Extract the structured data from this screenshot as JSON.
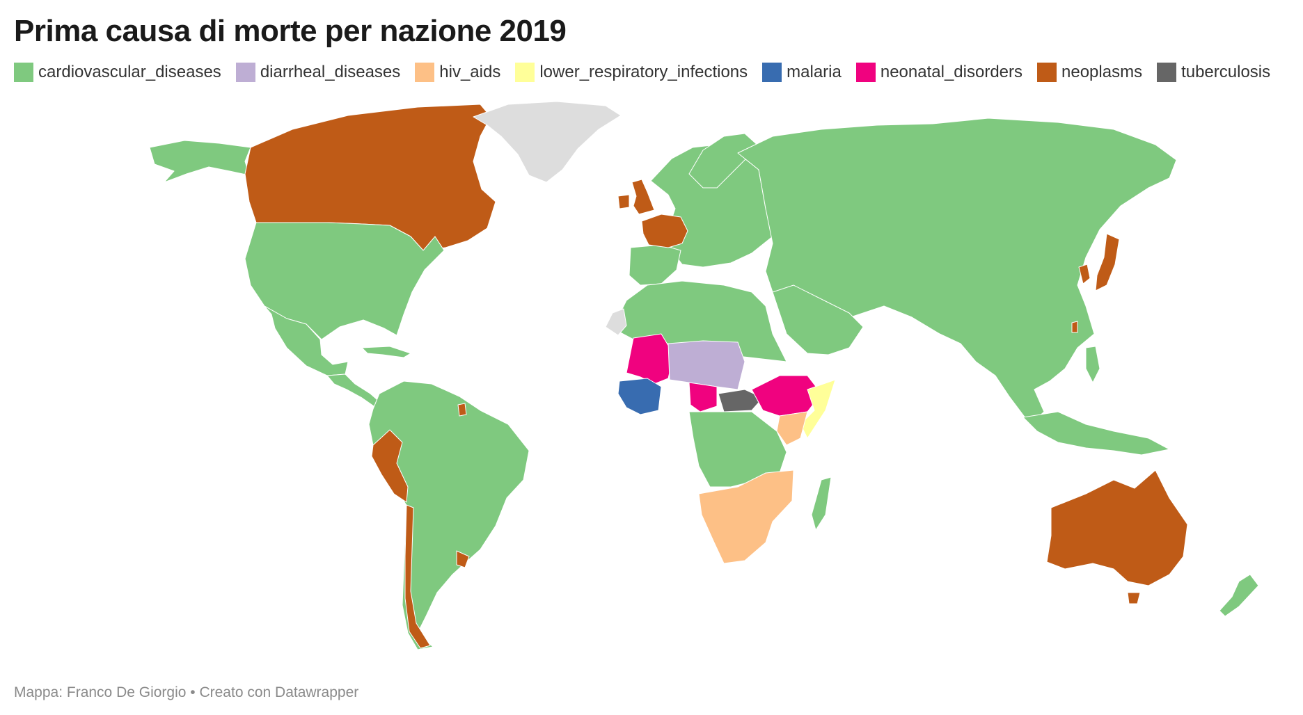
{
  "title": "Prima causa di morte per nazione 2019",
  "legend": [
    {
      "key": "cardiovascular_diseases",
      "label": "cardiovascular_diseases",
      "color": "#7fc97f"
    },
    {
      "key": "diarrheal_diseases",
      "label": "diarrheal_diseases",
      "color": "#beaed4"
    },
    {
      "key": "hiv_aids",
      "label": "hiv_aids",
      "color": "#fdc086"
    },
    {
      "key": "lower_respiratory_infections",
      "label": "lower_respiratory_infections",
      "color": "#ffff99"
    },
    {
      "key": "malaria",
      "label": "malaria",
      "color": "#386cb0"
    },
    {
      "key": "neonatal_disorders",
      "label": "neonatal_disorders",
      "color": "#f0027f"
    },
    {
      "key": "neoplasms",
      "label": "neoplasms",
      "color": "#bf5b17"
    },
    {
      "key": "tuberculosis",
      "label": "tuberculosis",
      "color": "#666666"
    }
  ],
  "no_data_color": "#dddddd",
  "footer": "Mappa: Franco De Giorgio • Creato con Datawrapper"
}
